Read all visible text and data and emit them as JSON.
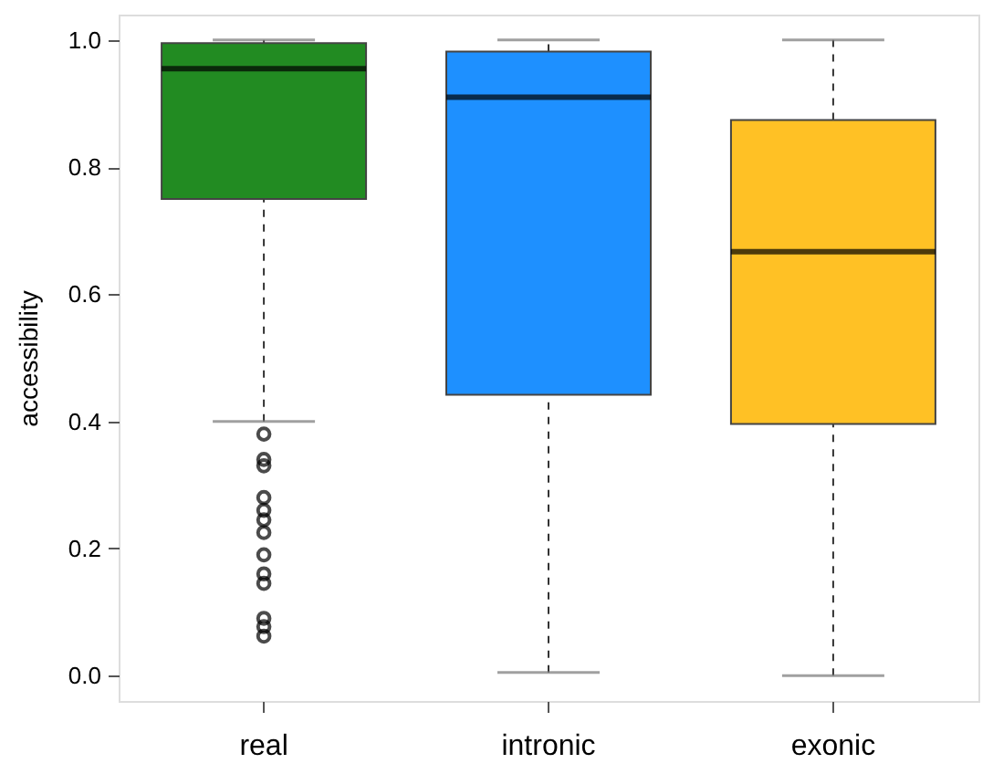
{
  "chart_data": {
    "type": "box",
    "ylabel": "accessibility",
    "categories": [
      "real",
      "intronic",
      "exonic"
    ],
    "colors": [
      "#228b22",
      "#1e90ff",
      "#ffc125"
    ],
    "boxes": [
      {
        "low": 0.4,
        "q1": 0.75,
        "median": 0.955,
        "q3": 0.995,
        "high": 1.0,
        "outliers": [
          0.38,
          0.34,
          0.33,
          0.28,
          0.26,
          0.245,
          0.225,
          0.19,
          0.16,
          0.145,
          0.09,
          0.077,
          0.062
        ]
      },
      {
        "low": 0.005,
        "q1": 0.442,
        "median": 0.91,
        "q3": 0.982,
        "high": 1.0
      },
      {
        "low": 0.0,
        "q1": 0.396,
        "median": 0.667,
        "q3": 0.874,
        "high": 1.0
      }
    ],
    "ylim": [
      -0.04,
      1.04
    ],
    "yticks": [
      {
        "value": 0,
        "label": "0.0"
      },
      0.2,
      0.4,
      0.6,
      0.8,
      {
        "value": 1,
        "label": "1.0"
      }
    ],
    "grid": false,
    "legend": false
  }
}
